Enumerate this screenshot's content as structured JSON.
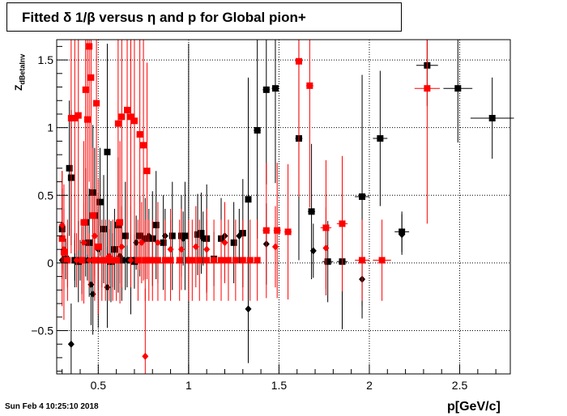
{
  "title": "Fitted δ 1/β versus η and p for Global pion+",
  "timestamp": "Sun Feb  4 10:25:10 2018",
  "chart_data": {
    "type": "scatter",
    "title": "Fitted δ 1/β versus η and p for Global pion+",
    "xlabel": "p[GeV/c]",
    "ylabel_main": "Z",
    "ylabel_sub": "dBetaInv",
    "xlim": [
      0.27,
      2.78
    ],
    "ylim": [
      -0.82,
      1.65
    ],
    "grid": true,
    "x_ticks": [
      0.5,
      1,
      1.5,
      2,
      2.5
    ],
    "x_tick_labels": [
      "0.5",
      "1",
      "1.5",
      "2",
      "2.5"
    ],
    "y_ticks": [
      -0.5,
      0,
      0.5,
      1,
      1.5
    ],
    "y_tick_labels": [
      "−0.5",
      "0",
      "0.5",
      "1",
      "1.5"
    ],
    "series": [
      {
        "color": "#000000",
        "markers": "square",
        "points": [
          {
            "x": 0.3,
            "y": 0.25,
            "e": 0.3,
            "xe": 0.01
          },
          {
            "x": 0.32,
            "y": 0.03,
            "e": 0.15,
            "xe": 0.01
          },
          {
            "x": 0.34,
            "y": 0.7,
            "e": 0.5,
            "xe": 0.01
          },
          {
            "x": 0.35,
            "y": 0.63,
            "e": 0.5,
            "xe": 0.01
          },
          {
            "x": 0.37,
            "y": 0.02,
            "e": 0.2,
            "xe": 0.01
          },
          {
            "x": 0.39,
            "y": 0.01,
            "e": 0.3,
            "xe": 0.01
          },
          {
            "x": 0.41,
            "y": 0.02,
            "e": 0.25,
            "xe": 0.01
          },
          {
            "x": 0.43,
            "y": 0.3,
            "e": 0.4,
            "xe": 0.01
          },
          {
            "x": 0.45,
            "y": 0.15,
            "e": 0.4,
            "xe": 0.01
          },
          {
            "x": 0.47,
            "y": 0.52,
            "e": 0.5,
            "xe": 0.01
          },
          {
            "x": 0.48,
            "y": 0.35,
            "e": 0.5,
            "xe": 0.01
          },
          {
            "x": 0.5,
            "y": 0.02,
            "e": 0.5,
            "xe": 0.01
          },
          {
            "x": 0.51,
            "y": 0.45,
            "e": 0.4,
            "xe": 0.01
          },
          {
            "x": 0.53,
            "y": 0.25,
            "e": 0.4,
            "xe": 0.01
          },
          {
            "x": 0.55,
            "y": 0.82,
            "e": 0.8,
            "xe": 0.01
          },
          {
            "x": 0.57,
            "y": 0.01,
            "e": 0.3,
            "xe": 0.01
          },
          {
            "x": 0.59,
            "y": 0.1,
            "e": 0.3,
            "xe": 0.01
          },
          {
            "x": 0.61,
            "y": 0.28,
            "e": 0.5,
            "xe": 0.01
          },
          {
            "x": 0.63,
            "y": 0.02,
            "e": 0.3,
            "xe": 0.01
          },
          {
            "x": 0.65,
            "y": 0.2,
            "e": 0.4,
            "xe": 0.01
          },
          {
            "x": 0.68,
            "y": 0.02,
            "e": 0.4,
            "xe": 0.01
          },
          {
            "x": 0.7,
            "y": 0.01,
            "e": 0.2,
            "xe": 0.01
          },
          {
            "x": 0.73,
            "y": 0.2,
            "e": 0.3,
            "xe": 0.01
          },
          {
            "x": 0.76,
            "y": 0.18,
            "e": 0.3,
            "xe": 0.01
          },
          {
            "x": 0.8,
            "y": 0.18,
            "e": 0.35,
            "xe": 0.01
          },
          {
            "x": 0.82,
            "y": 0.28,
            "e": 0.4,
            "xe": 0.01
          },
          {
            "x": 0.86,
            "y": 0.15,
            "e": 0.35,
            "xe": 0.01
          },
          {
            "x": 0.91,
            "y": 0.2,
            "e": 0.4,
            "xe": 0.01
          },
          {
            "x": 0.96,
            "y": 0.2,
            "e": 0.3,
            "xe": 0.01
          },
          {
            "x": 0.98,
            "y": 0.2,
            "e": 0.4,
            "xe": 0.01
          },
          {
            "x": 1.0,
            "y": 0.02,
            "e": 1.6,
            "xe": 0.01
          },
          {
            "x": 1.05,
            "y": 0.21,
            "e": 0.3,
            "xe": 0.01
          },
          {
            "x": 1.07,
            "y": 0.22,
            "e": 0.3,
            "xe": 0.01
          },
          {
            "x": 1.1,
            "y": 0.18,
            "e": 0.4,
            "xe": 0.01
          },
          {
            "x": 1.14,
            "y": 0.03,
            "e": 0.2,
            "xe": 0.01
          },
          {
            "x": 1.18,
            "y": 0.18,
            "e": 0.3,
            "xe": 0.01
          },
          {
            "x": 1.25,
            "y": 0.15,
            "e": 0.3,
            "xe": 0.01
          },
          {
            "x": 1.3,
            "y": 0.22,
            "e": 0.4,
            "xe": 0.01
          },
          {
            "x": 1.33,
            "y": 0.47,
            "e": 0.9,
            "xe": 0.01
          },
          {
            "x": 1.38,
            "y": 0.98,
            "e": 0.8,
            "xe": 0.02
          },
          {
            "x": 1.43,
            "y": 1.28,
            "e": 0.7,
            "xe": 0.02
          },
          {
            "x": 1.48,
            "y": 1.29,
            "e": 0.7,
            "xe": 0.02
          },
          {
            "x": 1.61,
            "y": 0.92,
            "e": 0.9,
            "xe": 0.02
          },
          {
            "x": 1.68,
            "y": 0.38,
            "e": 0.5,
            "xe": 0.02
          },
          {
            "x": 1.77,
            "y": 0.01,
            "e": 0.3,
            "xe": 0.03
          },
          {
            "x": 1.85,
            "y": 0.01,
            "e": 0.5,
            "xe": 0.03
          },
          {
            "x": 1.96,
            "y": 0.49,
            "e": 0.9,
            "xe": 0.04
          },
          {
            "x": 2.06,
            "y": 0.92,
            "e": 0.5,
            "xe": 0.04
          },
          {
            "x": 2.18,
            "y": 0.23,
            "e": 0.15,
            "xe": 0.04
          },
          {
            "x": 2.32,
            "y": 1.46,
            "e": 0.3,
            "xe": 0.06
          },
          {
            "x": 2.49,
            "y": 1.29,
            "e": 0.4,
            "xe": 0.08
          },
          {
            "x": 2.68,
            "y": 1.07,
            "e": 0.3,
            "xe": 0.12
          }
        ]
      },
      {
        "color": "#000000",
        "markers": "diamond",
        "points": [
          {
            "x": 0.3,
            "y": 0.02,
            "e": 0.1
          },
          {
            "x": 0.35,
            "y": -0.6,
            "e": 0.3
          },
          {
            "x": 0.37,
            "y": 0.02,
            "e": 0.15
          },
          {
            "x": 0.4,
            "y": 0.02,
            "e": 0.15
          },
          {
            "x": 0.44,
            "y": 0.02,
            "e": 0.15
          },
          {
            "x": 0.46,
            "y": -0.16,
            "e": 0.3
          },
          {
            "x": 0.47,
            "y": -0.23,
            "e": 0.3
          },
          {
            "x": 0.5,
            "y": 0.1,
            "e": 0.3
          },
          {
            "x": 0.55,
            "y": -0.18,
            "e": 0.3
          },
          {
            "x": 0.58,
            "y": 0.02,
            "e": 0.2
          },
          {
            "x": 0.62,
            "y": 0.05,
            "e": 0.2
          },
          {
            "x": 0.66,
            "y": 0.02,
            "e": 0.2
          },
          {
            "x": 0.71,
            "y": 0.15,
            "e": 0.2
          },
          {
            "x": 0.78,
            "y": 0.2,
            "e": 0.2
          },
          {
            "x": 0.87,
            "y": 0.2,
            "e": 0.2
          },
          {
            "x": 0.97,
            "y": 0.18,
            "e": 0.2
          },
          {
            "x": 1.08,
            "y": 0.18,
            "e": 0.2
          },
          {
            "x": 1.2,
            "y": 0.2,
            "e": 0.2
          },
          {
            "x": 1.28,
            "y": 0.2,
            "e": 0.2
          },
          {
            "x": 1.33,
            "y": -0.34,
            "e": 0.4
          },
          {
            "x": 1.43,
            "y": 0.14,
            "e": 0.3
          },
          {
            "x": 1.69,
            "y": 0.09,
            "e": 0.2
          },
          {
            "x": 1.96,
            "y": -0.12,
            "e": 0.2
          },
          {
            "x": 2.18,
            "y": 0.21,
            "e": 0.15
          }
        ]
      },
      {
        "color": "#ff0000",
        "markers": "square",
        "points": [
          {
            "x": 0.3,
            "y": 0.18,
            "e": 0.5,
            "xe": 0.01
          },
          {
            "x": 0.31,
            "y": 0.08,
            "e": 0.5,
            "xe": 0.01
          },
          {
            "x": 0.33,
            "y": 0.02,
            "e": 0.3,
            "xe": 0.01
          },
          {
            "x": 0.35,
            "y": 1.07,
            "e": 1.0,
            "xe": 0.01
          },
          {
            "x": 0.37,
            "y": 1.07,
            "e": 1.0,
            "xe": 0.01
          },
          {
            "x": 0.39,
            "y": 1.09,
            "e": 1.0,
            "xe": 0.01
          },
          {
            "x": 0.41,
            "y": 0.02,
            "e": 0.3,
            "xe": 0.01
          },
          {
            "x": 0.42,
            "y": 0.3,
            "e": 0.6,
            "xe": 0.01
          },
          {
            "x": 0.43,
            "y": 1.28,
            "e": 1.0,
            "xe": 0.01
          },
          {
            "x": 0.44,
            "y": 1.06,
            "e": 1.0,
            "xe": 0.01
          },
          {
            "x": 0.45,
            "y": 1.6,
            "e": 1.0,
            "xe": 0.01
          },
          {
            "x": 0.46,
            "y": 1.37,
            "e": 1.0,
            "xe": 0.01
          },
          {
            "x": 0.47,
            "y": 0.35,
            "e": 0.5,
            "xe": 0.01
          },
          {
            "x": 0.48,
            "y": 0.02,
            "e": 0.3,
            "xe": 0.01
          },
          {
            "x": 0.49,
            "y": 1.18,
            "e": 1.0,
            "xe": 0.01
          },
          {
            "x": 0.5,
            "y": 0.12,
            "e": 0.5,
            "xe": 0.01
          },
          {
            "x": 0.52,
            "y": 0.02,
            "e": 0.3,
            "xe": 0.01
          },
          {
            "x": 0.54,
            "y": 0.02,
            "e": 0.3,
            "xe": 0.01
          },
          {
            "x": 0.56,
            "y": 0.02,
            "e": 0.3,
            "xe": 0.01
          },
          {
            "x": 0.58,
            "y": 0.02,
            "e": 0.3,
            "xe": 0.01
          },
          {
            "x": 0.6,
            "y": 0.02,
            "e": 0.3,
            "xe": 0.01
          },
          {
            "x": 0.61,
            "y": 1.03,
            "e": 1.0,
            "xe": 0.01
          },
          {
            "x": 0.62,
            "y": 0.3,
            "e": 0.6,
            "xe": 0.01
          },
          {
            "x": 0.63,
            "y": 1.08,
            "e": 1.0,
            "xe": 0.01
          },
          {
            "x": 0.66,
            "y": 1.13,
            "e": 1.0,
            "xe": 0.01
          },
          {
            "x": 0.68,
            "y": 1.08,
            "e": 1.0,
            "xe": 0.01
          },
          {
            "x": 0.7,
            "y": 1.05,
            "e": 1.0,
            "xe": 0.01
          },
          {
            "x": 0.72,
            "y": 0.02,
            "e": 0.3,
            "xe": 0.01
          },
          {
            "x": 0.73,
            "y": 0.95,
            "e": 1.0,
            "xe": 0.01
          },
          {
            "x": 0.75,
            "y": 0.87,
            "e": 1.0,
            "xe": 0.01
          },
          {
            "x": 0.76,
            "y": 0.02,
            "e": 0.3,
            "xe": 0.01
          },
          {
            "x": 0.77,
            "y": 0.68,
            "e": 0.8,
            "xe": 0.01
          },
          {
            "x": 0.78,
            "y": 0.02,
            "e": 0.3,
            "xe": 0.01
          },
          {
            "x": 0.8,
            "y": 0.02,
            "e": 0.3,
            "xe": 0.01
          },
          {
            "x": 0.83,
            "y": 0.02,
            "e": 0.3,
            "xe": 0.01
          },
          {
            "x": 0.87,
            "y": 0.02,
            "e": 0.3,
            "xe": 0.01
          },
          {
            "x": 0.9,
            "y": 0.02,
            "e": 0.3,
            "xe": 0.01
          },
          {
            "x": 0.95,
            "y": 0.02,
            "e": 0.3,
            "xe": 0.01
          },
          {
            "x": 1.0,
            "y": 0.02,
            "e": 0.3,
            "xe": 0.01
          },
          {
            "x": 1.02,
            "y": 0.02,
            "e": 0.3,
            "xe": 0.01
          },
          {
            "x": 1.06,
            "y": 0.02,
            "e": 0.3,
            "xe": 0.01
          },
          {
            "x": 1.1,
            "y": 0.02,
            "e": 0.3,
            "xe": 0.01
          },
          {
            "x": 1.14,
            "y": 0.02,
            "e": 0.3,
            "xe": 0.01
          },
          {
            "x": 1.18,
            "y": 0.02,
            "e": 0.3,
            "xe": 0.01
          },
          {
            "x": 1.22,
            "y": 0.02,
            "e": 0.3,
            "xe": 0.01
          },
          {
            "x": 1.26,
            "y": 0.02,
            "e": 0.3,
            "xe": 0.01
          },
          {
            "x": 1.3,
            "y": 0.02,
            "e": 0.3,
            "xe": 0.01
          },
          {
            "x": 1.34,
            "y": 0.02,
            "e": 0.3,
            "xe": 0.01
          },
          {
            "x": 1.38,
            "y": 0.02,
            "e": 0.3,
            "xe": 0.01
          },
          {
            "x": 1.43,
            "y": 0.24,
            "e": 0.5,
            "xe": 0.02
          },
          {
            "x": 1.49,
            "y": 0.24,
            "e": 0.5,
            "xe": 0.02
          },
          {
            "x": 1.55,
            "y": 0.23,
            "e": 0.5,
            "xe": 0.02
          },
          {
            "x": 1.61,
            "y": 1.49,
            "e": 1.0,
            "xe": 0.02
          },
          {
            "x": 1.67,
            "y": 1.31,
            "e": 0.9,
            "xe": 0.02
          },
          {
            "x": 1.76,
            "y": 0.26,
            "e": 0.5,
            "xe": 0.03
          },
          {
            "x": 1.85,
            "y": 0.29,
            "e": 0.5,
            "xe": 0.03
          },
          {
            "x": 1.96,
            "y": 0.02,
            "e": 0.3,
            "xe": 0.04
          },
          {
            "x": 2.07,
            "y": 0.02,
            "e": 0.3,
            "xe": 0.05
          },
          {
            "x": 2.32,
            "y": 1.29,
            "e": 1.0,
            "xe": 0.07
          }
        ]
      },
      {
        "color": "#ff0000",
        "markers": "diamond",
        "points": [
          {
            "x": 0.3,
            "y": 0.28,
            "e": 0.4
          },
          {
            "x": 0.31,
            "y": 0.1,
            "e": 0.3
          },
          {
            "x": 0.33,
            "y": 0.02,
            "e": 0.2
          },
          {
            "x": 0.38,
            "y": 0.02,
            "e": 0.2
          },
          {
            "x": 0.42,
            "y": 0.15,
            "e": 0.3
          },
          {
            "x": 0.45,
            "y": 0.02,
            "e": 0.2
          },
          {
            "x": 0.48,
            "y": 0.2,
            "e": 0.3
          },
          {
            "x": 0.52,
            "y": 0.02,
            "e": 0.2
          },
          {
            "x": 0.56,
            "y": 0.05,
            "e": 0.2
          },
          {
            "x": 0.63,
            "y": 0.12,
            "e": 0.3
          },
          {
            "x": 0.68,
            "y": 0.02,
            "e": 0.2
          },
          {
            "x": 0.74,
            "y": 0.15,
            "e": 0.3
          },
          {
            "x": 0.76,
            "y": -0.69,
            "e": 0.5
          },
          {
            "x": 0.83,
            "y": 0.15,
            "e": 0.3
          },
          {
            "x": 0.9,
            "y": 0.1,
            "e": 0.3
          },
          {
            "x": 0.96,
            "y": 0.1,
            "e": 0.3
          },
          {
            "x": 1.04,
            "y": 0.12,
            "e": 0.3
          },
          {
            "x": 1.1,
            "y": 0.1,
            "e": 0.3
          },
          {
            "x": 1.2,
            "y": 0.15,
            "e": 0.3
          },
          {
            "x": 1.48,
            "y": 0.12,
            "e": 0.3
          },
          {
            "x": 1.76,
            "y": 0.11,
            "e": 0.3
          }
        ]
      }
    ]
  }
}
